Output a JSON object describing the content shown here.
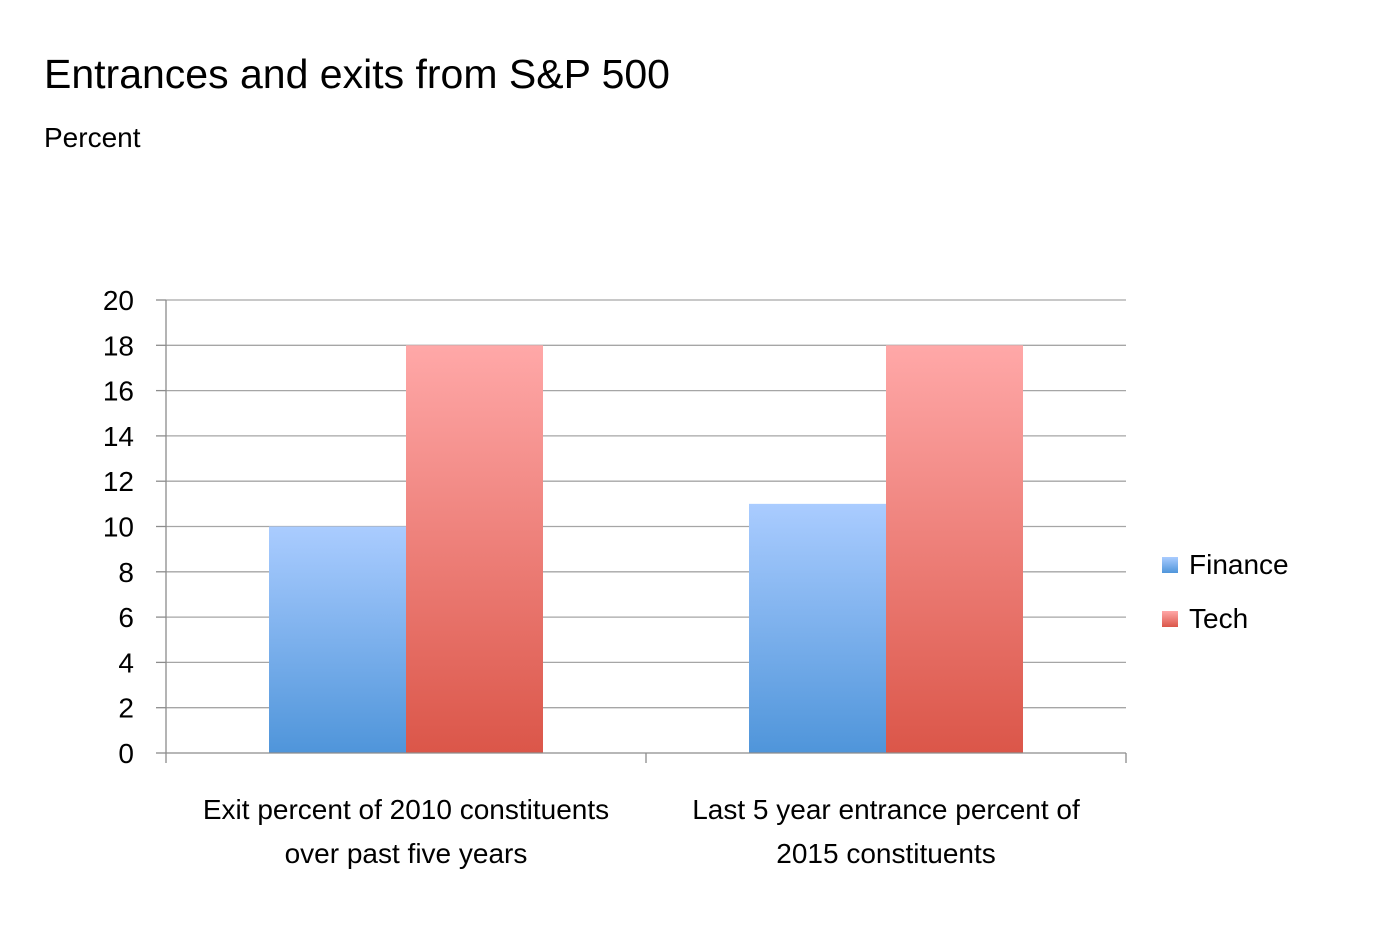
{
  "chart_data": {
    "type": "bar",
    "title": "Entrances and exits from S&P 500",
    "subtitle": "Percent",
    "categories": [
      "Exit percent of 2010 constituents over past five years",
      "Last 5 year entrance percent of 2015 constituents"
    ],
    "category_lines": [
      [
        "Exit percent of 2010 constituents",
        "over past five years"
      ],
      [
        "Last 5 year entrance percent of",
        "2015 constituents"
      ]
    ],
    "series": [
      {
        "name": "Finance",
        "values": [
          10,
          11
        ],
        "color_top": "#aaccff",
        "color_bottom": "#4f95da"
      },
      {
        "name": "Tech",
        "values": [
          18,
          18
        ],
        "color_top": "#ffa8a8",
        "color_bottom": "#db5649"
      }
    ],
    "ylim": [
      0,
      20
    ],
    "yticks": [
      "0",
      "2",
      "4",
      "6",
      "8",
      "10",
      "12",
      "14",
      "16",
      "18",
      "20"
    ],
    "grid": true,
    "legend_position": "right",
    "xlabel": "",
    "ylabel": ""
  }
}
